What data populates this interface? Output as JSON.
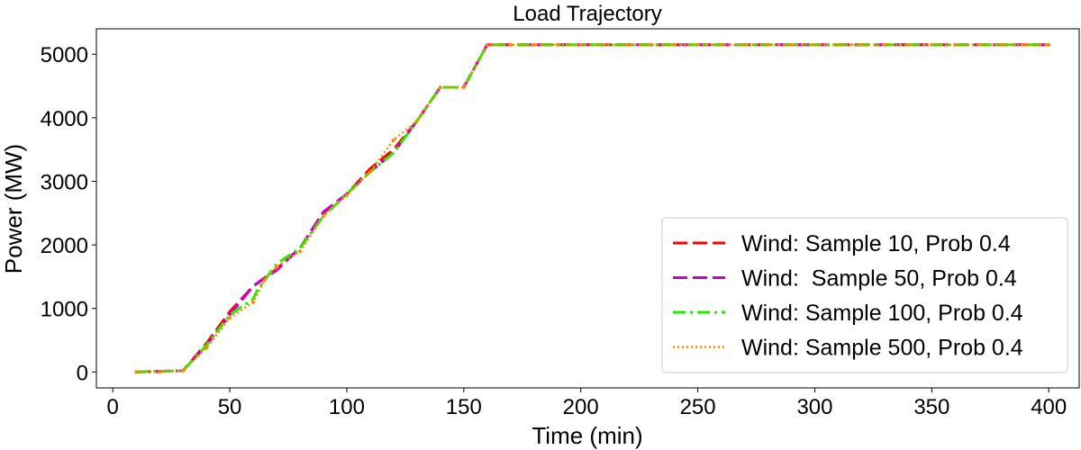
{
  "chart_data": {
    "type": "line",
    "title": "Load Trajectory",
    "xlabel": "Time (min)",
    "ylabel": "Power (MW)",
    "xlim": [
      -7,
      413
    ],
    "ylim": [
      -250,
      5400
    ],
    "xticks": [
      0,
      50,
      100,
      150,
      200,
      250,
      300,
      350,
      400
    ],
    "yticks": [
      0,
      1000,
      2000,
      3000,
      4000,
      5000
    ],
    "grid": false,
    "legend_position": "lower-right",
    "series": [
      {
        "name": "Wind: Sample 10, Prob 0.4",
        "color": "#ff0000",
        "style": "dashed",
        "x": [
          10,
          30,
          40,
          50,
          60,
          70,
          80,
          90,
          100,
          110,
          120,
          130,
          140,
          150,
          160,
          400
        ],
        "y": [
          0,
          20,
          450,
          950,
          1350,
          1620,
          1950,
          2500,
          2800,
          3200,
          3500,
          3950,
          4480,
          4480,
          5150,
          5150
        ]
      },
      {
        "name": "Wind:  Sample 50, Prob 0.4",
        "color": "#cc00cc",
        "style": "dashed",
        "x": [
          10,
          30,
          40,
          50,
          60,
          70,
          80,
          90,
          100,
          110,
          120,
          130,
          140,
          150,
          160,
          400
        ],
        "y": [
          0,
          20,
          420,
          900,
          1350,
          1600,
          1950,
          2520,
          2800,
          3150,
          3450,
          3950,
          4480,
          4480,
          5150,
          5150
        ]
      },
      {
        "name": "Wind: Sample 100, Prob 0.4",
        "color": "#22ee00",
        "style": "dashdot",
        "x": [
          10,
          30,
          40,
          50,
          60,
          62,
          70,
          80,
          90,
          100,
          110,
          120,
          130,
          140,
          150,
          160,
          400
        ],
        "y": [
          0,
          20,
          420,
          900,
          1150,
          1300,
          1700,
          1950,
          2450,
          2800,
          3150,
          3450,
          3950,
          4480,
          4480,
          5150,
          5150
        ]
      },
      {
        "name": "Wind: Sample 500, Prob 0.4",
        "color": "#ff8800",
        "style": "dotted",
        "x": [
          10,
          20,
          30,
          40,
          50,
          60,
          65,
          70,
          80,
          90,
          100,
          110,
          120,
          130,
          140,
          150,
          160,
          170,
          180,
          190,
          200,
          210,
          220,
          230,
          240,
          250,
          260,
          270,
          280,
          290,
          300,
          310,
          320,
          330,
          340,
          350,
          360,
          370,
          380,
          390,
          400
        ],
        "y": [
          0,
          0,
          20,
          380,
          850,
          1100,
          1450,
          1650,
          1900,
          2450,
          2780,
          3150,
          3650,
          3950,
          4480,
          4480,
          5150,
          5150,
          5150,
          5150,
          5150,
          5150,
          5150,
          5150,
          5150,
          5150,
          5150,
          5150,
          5150,
          5150,
          5150,
          5150,
          5150,
          5150,
          5150,
          5150,
          5150,
          5150,
          5150,
          5150,
          5150
        ]
      }
    ]
  }
}
